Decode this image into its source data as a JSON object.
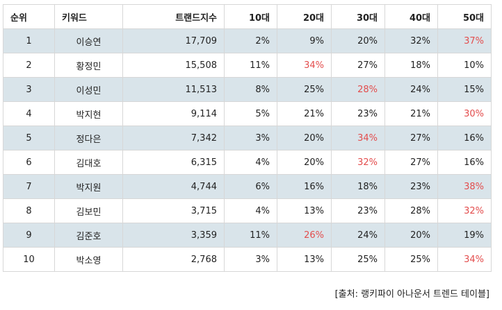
{
  "table": {
    "headers": [
      "순위",
      "키워드",
      "트랜드지수",
      "10대",
      "20대",
      "30대",
      "40대",
      "50대"
    ],
    "highlight_color": "#e34d4d",
    "row_shade_color": "#d9e4ea",
    "rows": [
      {
        "rank": "1",
        "keyword": "이승연",
        "index": "17,709",
        "p10": "2%",
        "p20": "9%",
        "p30": "20%",
        "p40": "32%",
        "p50": "37%",
        "highlight": "p50"
      },
      {
        "rank": "2",
        "keyword": "황정민",
        "index": "15,508",
        "p10": "11%",
        "p20": "34%",
        "p30": "27%",
        "p40": "18%",
        "p50": "10%",
        "highlight": "p20"
      },
      {
        "rank": "3",
        "keyword": "이성민",
        "index": "11,513",
        "p10": "8%",
        "p20": "25%",
        "p30": "28%",
        "p40": "24%",
        "p50": "15%",
        "highlight": "p30"
      },
      {
        "rank": "4",
        "keyword": "박지현",
        "index": "9,114",
        "p10": "5%",
        "p20": "21%",
        "p30": "23%",
        "p40": "21%",
        "p50": "30%",
        "highlight": "p50"
      },
      {
        "rank": "5",
        "keyword": "정다은",
        "index": "7,342",
        "p10": "3%",
        "p20": "20%",
        "p30": "34%",
        "p40": "27%",
        "p50": "16%",
        "highlight": "p30"
      },
      {
        "rank": "6",
        "keyword": "김대호",
        "index": "6,315",
        "p10": "4%",
        "p20": "20%",
        "p30": "32%",
        "p40": "27%",
        "p50": "16%",
        "highlight": "p30"
      },
      {
        "rank": "7",
        "keyword": "박지원",
        "index": "4,744",
        "p10": "6%",
        "p20": "16%",
        "p30": "18%",
        "p40": "23%",
        "p50": "38%",
        "highlight": "p50"
      },
      {
        "rank": "8",
        "keyword": "김보민",
        "index": "3,715",
        "p10": "4%",
        "p20": "13%",
        "p30": "23%",
        "p40": "28%",
        "p50": "32%",
        "highlight": "p50"
      },
      {
        "rank": "9",
        "keyword": "김준호",
        "index": "3,359",
        "p10": "11%",
        "p20": "26%",
        "p30": "24%",
        "p40": "20%",
        "p50": "19%",
        "highlight": "p20"
      },
      {
        "rank": "10",
        "keyword": "박소영",
        "index": "2,768",
        "p10": "3%",
        "p20": "13%",
        "p30": "25%",
        "p40": "25%",
        "p50": "34%",
        "highlight": "p50"
      }
    ]
  },
  "source": "[출처: 랭키파이 아나운서 트렌드 테이블]"
}
